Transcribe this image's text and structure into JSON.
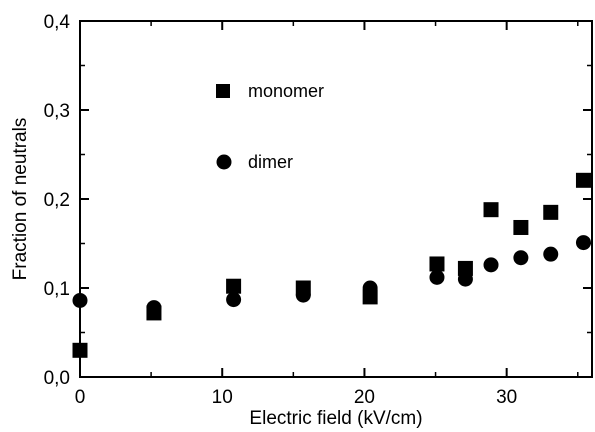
{
  "chart_data": {
    "type": "scatter",
    "title": "",
    "xlabel": "Electric field (kV/cm)",
    "ylabel": "Fraction of neutrals",
    "xlim": [
      0,
      36
    ],
    "ylim": [
      0,
      0.4
    ],
    "x_ticks": [
      {
        "value": 0,
        "label": "0"
      },
      {
        "value": 10,
        "label": "10"
      },
      {
        "value": 20,
        "label": "20"
      },
      {
        "value": 30,
        "label": "30"
      }
    ],
    "y_ticks": [
      {
        "value": 0,
        "label": "0,0"
      },
      {
        "value": 0.1,
        "label": "0,1"
      },
      {
        "value": 0.2,
        "label": "0,2"
      },
      {
        "value": 0.3,
        "label": "0,3"
      },
      {
        "value": 0.4,
        "label": "0,4"
      }
    ],
    "grid": false,
    "legend_position": "upper-left-inside",
    "series": [
      {
        "name": "monomer",
        "marker": "square",
        "color": "#000000",
        "points": [
          {
            "x": 0,
            "y": 0.03
          },
          {
            "x": 5.2,
            "y": 0.072
          },
          {
            "x": 10.8,
            "y": 0.102
          },
          {
            "x": 15.7,
            "y": 0.1
          },
          {
            "x": 20.4,
            "y": 0.09
          },
          {
            "x": 25.1,
            "y": 0.127
          },
          {
            "x": 27.1,
            "y": 0.122
          },
          {
            "x": 28.9,
            "y": 0.188
          },
          {
            "x": 31.0,
            "y": 0.168
          },
          {
            "x": 33.1,
            "y": 0.185
          },
          {
            "x": 35.4,
            "y": 0.221
          }
        ]
      },
      {
        "name": "dimer",
        "marker": "circle",
        "color": "#000000",
        "points": [
          {
            "x": 0,
            "y": 0.086
          },
          {
            "x": 5.2,
            "y": 0.078
          },
          {
            "x": 10.8,
            "y": 0.087
          },
          {
            "x": 15.7,
            "y": 0.092
          },
          {
            "x": 20.4,
            "y": 0.1
          },
          {
            "x": 25.1,
            "y": 0.112
          },
          {
            "x": 27.1,
            "y": 0.11
          },
          {
            "x": 28.9,
            "y": 0.126
          },
          {
            "x": 31.0,
            "y": 0.134
          },
          {
            "x": 33.1,
            "y": 0.138
          },
          {
            "x": 35.4,
            "y": 0.151
          }
        ]
      }
    ]
  }
}
